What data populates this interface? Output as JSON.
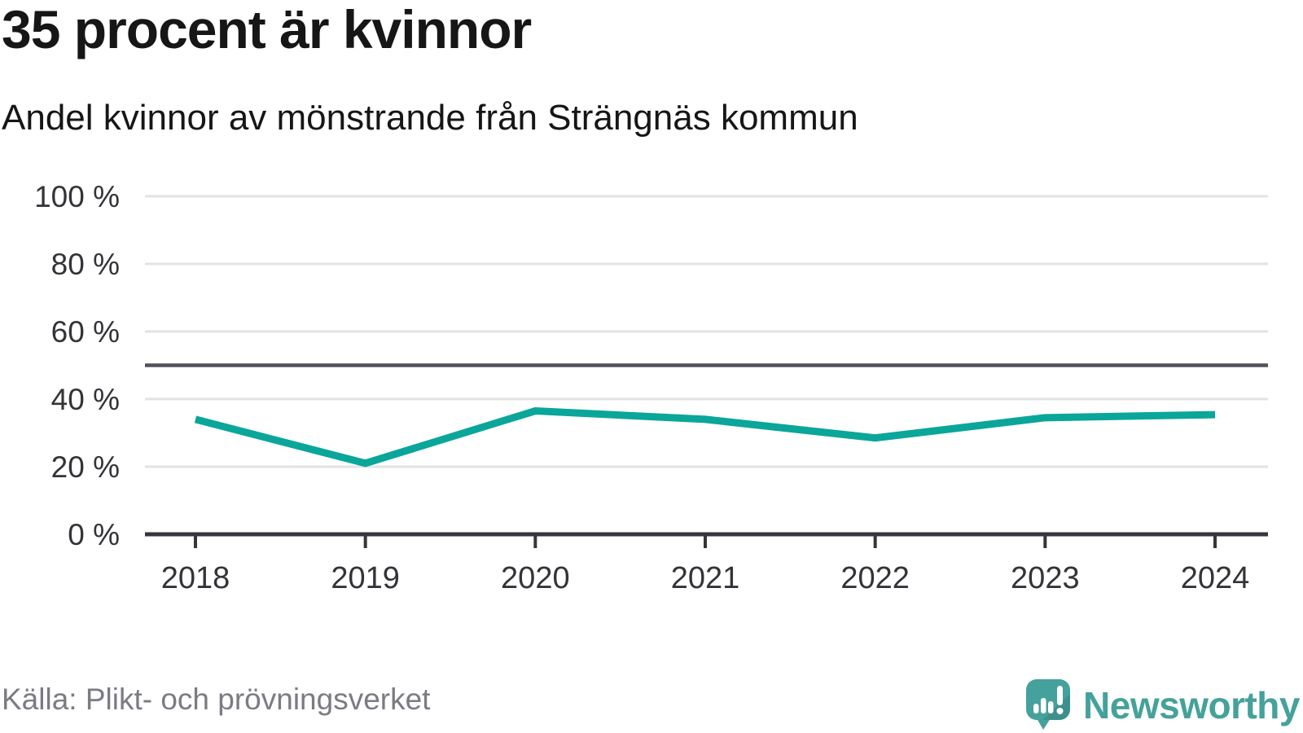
{
  "header": {
    "title": "35 procent är kvinnor",
    "subtitle": "Andel kvinnor av mönstrande från Strängnäs kommun"
  },
  "footer": {
    "source": "Källa: Plikt- och prövningsverket",
    "brand": "Newsworthy"
  },
  "colors": {
    "accent": "#0aa69a",
    "reference_line": "#52525c",
    "axis": "#35353b",
    "grid": "#e3e3e3",
    "text": "#161616",
    "muted_text": "#7b7b83",
    "brand": "#45a19b"
  },
  "chart_data": {
    "type": "line",
    "title": "35 procent är kvinnor",
    "subtitle": "Andel kvinnor av mönstrande från Strängnäs kommun",
    "categories": [
      "2018",
      "2019",
      "2020",
      "2021",
      "2022",
      "2023",
      "2024"
    ],
    "series": [
      {
        "name": "Andel kvinnor av mönstrande, Strängnäs kommun",
        "values": [
          34,
          21,
          36.5,
          34,
          28.5,
          34.5,
          35.4
        ]
      }
    ],
    "unit": "%",
    "xlabel": "",
    "ylabel": "",
    "ylim": [
      0,
      100
    ],
    "yticks": [
      0,
      20,
      40,
      60,
      80,
      100
    ],
    "ytick_suffix": " %",
    "reference_line_y": 50,
    "grid": true,
    "legend_position": "none",
    "source": "Källa: Plikt- och prövningsverket"
  }
}
